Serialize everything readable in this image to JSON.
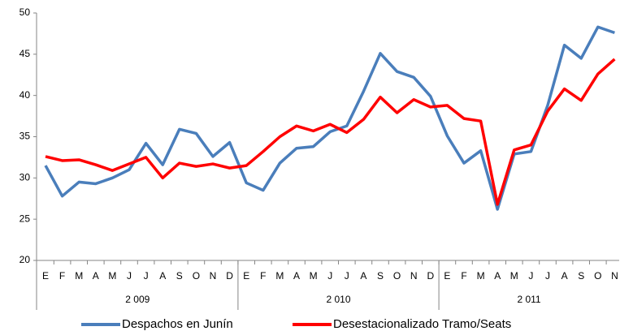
{
  "chart_data": {
    "type": "line",
    "category_groups": [
      {
        "label": "2 009",
        "categories": [
          "E",
          "F",
          "M",
          "A",
          "M",
          "J",
          "J",
          "A",
          "S",
          "O",
          "N",
          "D"
        ]
      },
      {
        "label": "2 010",
        "categories": [
          "E",
          "F",
          "M",
          "A",
          "M",
          "J",
          "J",
          "A",
          "S",
          "O",
          "N",
          "D"
        ]
      },
      {
        "label": "2 011",
        "categories": [
          "E",
          "F",
          "M",
          "A",
          "M",
          "J",
          "J",
          "A",
          "S",
          "O",
          "N"
        ]
      }
    ],
    "series": [
      {
        "name": "Despachos en Junín",
        "color": "#4a7ebb",
        "values": [
          31.5,
          27.8,
          29.5,
          29.3,
          30.0,
          31.0,
          34.2,
          31.6,
          35.9,
          35.4,
          32.6,
          34.3,
          29.4,
          28.5,
          31.8,
          33.6,
          33.8,
          35.6,
          36.3,
          40.5,
          45.1,
          42.9,
          42.2,
          39.9,
          35.1,
          31.8,
          33.3,
          26.2,
          32.9,
          33.2,
          38.8,
          46.1,
          44.5,
          48.3,
          47.6
        ]
      },
      {
        "name": "Desestacionalizado Tramo/Seats",
        "color": "#ff0000",
        "values": [
          32.6,
          32.1,
          32.2,
          31.6,
          30.9,
          31.7,
          32.5,
          30.0,
          31.8,
          31.4,
          31.7,
          31.2,
          31.5,
          33.2,
          35.0,
          36.3,
          35.7,
          36.5,
          35.5,
          37.1,
          39.8,
          37.9,
          39.5,
          38.6,
          38.8,
          37.2,
          36.9,
          26.8,
          33.4,
          34.0,
          38.1,
          40.8,
          39.4,
          42.6,
          44.4
        ]
      }
    ],
    "ylim": [
      20,
      50
    ],
    "yticks": [
      20,
      25,
      30,
      35,
      40,
      45,
      50
    ],
    "grid": false,
    "legend": "bottom"
  }
}
